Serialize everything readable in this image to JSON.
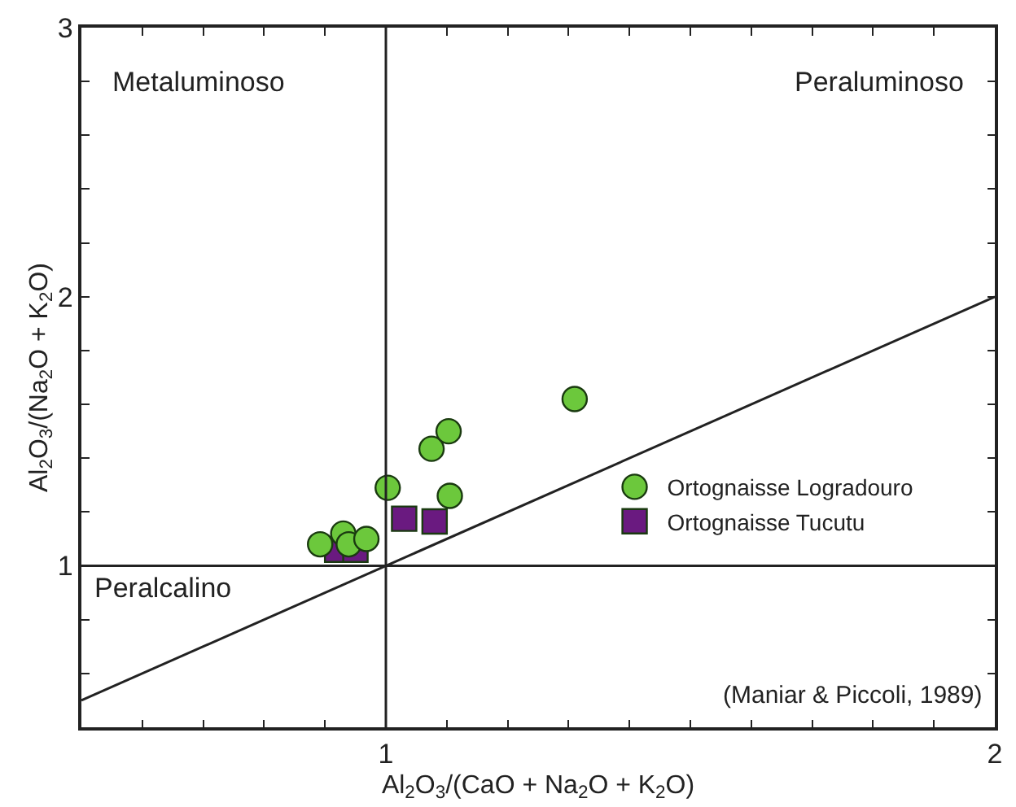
{
  "chart_data": {
    "type": "scatter",
    "xlabel": "Al$_{2}$O$_{3}$/(CaO + Na$_{2}$O + K$_{2}$O)",
    "ylabel": "Al$_{2}$O$_{3}$/(Na$_{2}$O + K$_{2}$O)",
    "xlim": [
      0.5,
      2
    ],
    "ylim": [
      0.4,
      3
    ],
    "xticks": [
      {
        "value": 0.6,
        "label": null
      },
      {
        "value": 0.7,
        "label": null
      },
      {
        "value": 0.8,
        "label": null
      },
      {
        "value": 0.9,
        "label": null
      },
      1,
      {
        "value": 1.1,
        "label": null
      },
      {
        "value": 1.2,
        "label": null
      },
      {
        "value": 1.3,
        "label": null
      },
      {
        "value": 1.4,
        "label": null
      },
      {
        "value": 1.5,
        "label": null
      },
      {
        "value": 1.6,
        "label": null
      },
      {
        "value": 1.7,
        "label": null
      },
      {
        "value": 1.8,
        "label": null
      },
      {
        "value": 1.9,
        "label": null
      },
      2
    ],
    "yticks": [
      {
        "value": 0.6,
        "label": null
      },
      {
        "value": 0.8,
        "label": null
      },
      1,
      {
        "value": 1.2,
        "label": null
      },
      {
        "value": 1.4,
        "label": null
      },
      {
        "value": 1.6,
        "label": null
      },
      {
        "value": 1.8,
        "label": null
      },
      2,
      {
        "value": 2.2,
        "label": null
      },
      {
        "value": 2.4,
        "label": null
      },
      {
        "value": 2.6,
        "label": null
      },
      {
        "value": 2.8,
        "label": null
      },
      3
    ],
    "series": [
      {
        "name": "Ortognaisse Logradouro",
        "color": "#6cc83c",
        "marker": "circle",
        "x": [
          0.892,
          0.93,
          0.939,
          0.968,
          1.003,
          1.075,
          1.103,
          1.105,
          1.31
        ],
        "values": [
          1.08,
          1.12,
          1.08,
          1.1,
          1.29,
          1.435,
          1.5,
          1.26,
          1.62
        ]
      },
      {
        "name": "Ortognaisse Tucutu",
        "color": "#6a1a80",
        "marker": "square",
        "x": [
          0.92,
          0.95,
          1.03,
          1.08
        ],
        "values": [
          1.06,
          1.06,
          1.175,
          1.165
        ]
      },
      {
        "type": "line",
        "color": "#222222",
        "x": [
          0.5,
          2
        ],
        "values": [
          0.5,
          2
        ]
      },
      {
        "type": "line",
        "color": "#222222",
        "x": [
          1,
          1
        ],
        "values": [
          0.4,
          3
        ]
      },
      {
        "type": "line",
        "color": "#222222",
        "x": [
          0.5,
          2
        ],
        "values": [
          1,
          1
        ]
      }
    ],
    "annotations": [
      "Metaluminoso",
      "Peraluminoso",
      "Peralcalino",
      "(Maniar & Piccoli, 1989)"
    ],
    "legend": "bottom right"
  }
}
